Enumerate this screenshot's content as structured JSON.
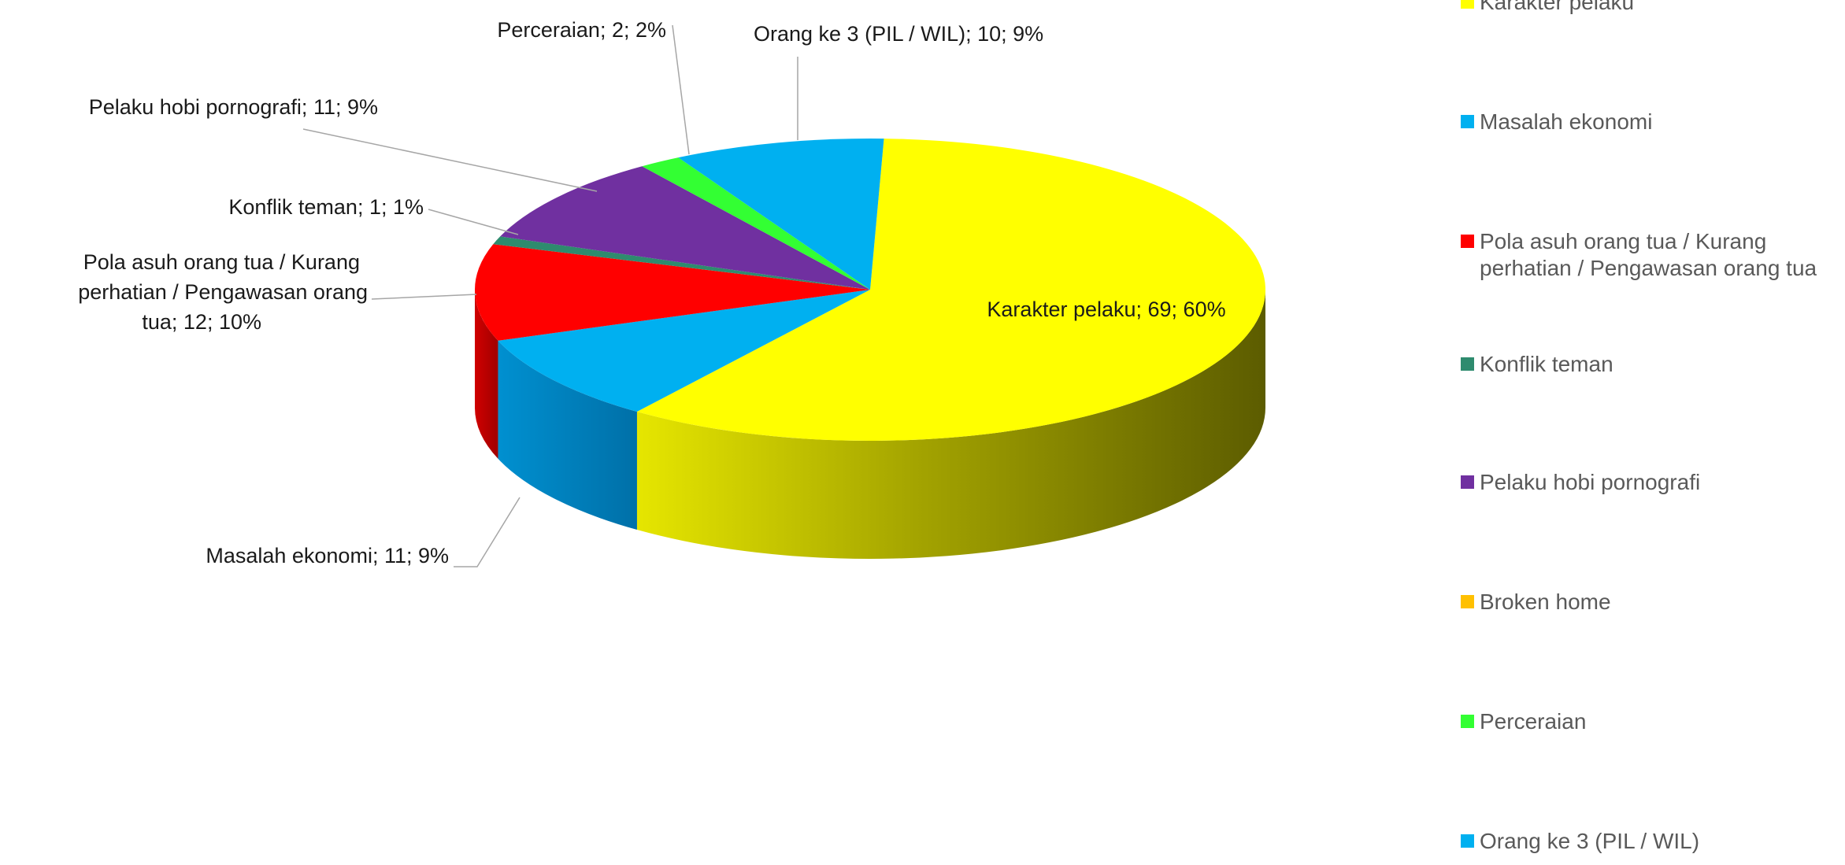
{
  "chart_data": {
    "type": "pie",
    "style": "3d",
    "slices": [
      {
        "label": "Karakter pelaku",
        "value": 69,
        "percent": "60%",
        "color": "#ffff00"
      },
      {
        "label": "Masalah ekonomi",
        "value": 11,
        "percent": "9%",
        "color": "#00b0f0"
      },
      {
        "label": "Pola asuh orang tua / Kurang perhatian / Pengawasan orang tua",
        "value": 12,
        "percent": "10%",
        "color": "#ff0000"
      },
      {
        "label": "Konflik teman",
        "value": 1,
        "percent": "1%",
        "color": "#2e8b6e"
      },
      {
        "label": "Pelaku hobi pornografi",
        "value": 11,
        "percent": "9%",
        "color": "#7030a0"
      },
      {
        "label": "Broken home",
        "value": 0,
        "percent": "0%",
        "color": "#ffc000"
      },
      {
        "label": "Perceraian",
        "value": 2,
        "percent": "2%",
        "color": "#33ff33"
      },
      {
        "label": "Orang ke 3 (PIL / WIL)",
        "value": 10,
        "percent": "9%",
        "color": "#00b0f0"
      }
    ],
    "data_labels": [
      "Karakter pelaku; 69; 60%",
      "Masalah ekonomi; 11; 9%",
      "Pola asuh orang tua / Kurang perhatian / Pengawasan orang tua; 12; 10%",
      "Konflik teman; 1; 1%",
      "Pelaku hobi pornografi; 11; 9%",
      "Perceraian; 2; 2%",
      "Orang ke 3 (PIL / WIL); 10; 9%"
    ],
    "legend_position": "right"
  }
}
